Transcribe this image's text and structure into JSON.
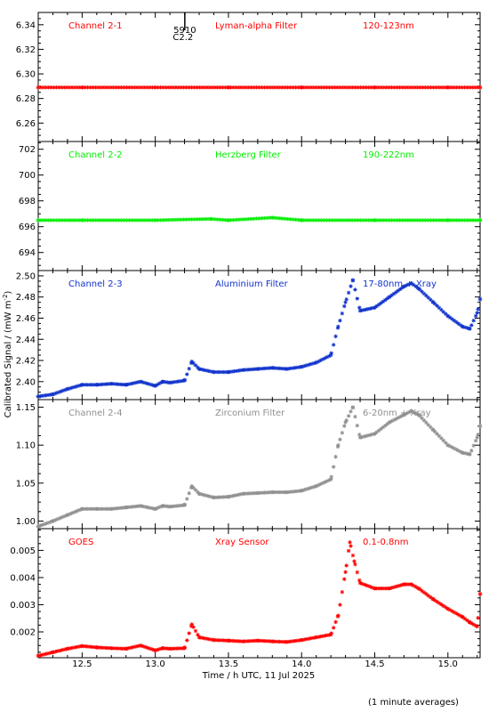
{
  "figure": {
    "ylabel": "Calibrated Signal / (mW m",
    "ylabel_sup": "-2",
    "ylabel_end": ")",
    "xlabel": "Time / h UTC, 11 Jul 2025",
    "footnote": "(1 minute averages)",
    "marker": {
      "label_top": "5910",
      "label_bottom": "C2.2",
      "x": 13.22
    }
  },
  "chart_data": [
    {
      "type": "scatter",
      "channel": "Channel 2-1",
      "filter": "Lyman-alpha Filter",
      "band": "120-123nm",
      "color": "#ff0000",
      "xlim": [
        12.2,
        15.22
      ],
      "ylim": [
        6.245,
        6.35
      ],
      "yticks": [
        "6.26",
        "6.28",
        "6.30",
        "6.32",
        "6.34"
      ],
      "x": [
        12.2,
        12.5,
        13.0,
        13.5,
        14.0,
        14.5,
        15.0,
        15.22
      ],
      "y": [
        6.289,
        6.289,
        6.289,
        6.289,
        6.289,
        6.289,
        6.289,
        6.289
      ]
    },
    {
      "type": "scatter",
      "channel": "Channel 2-2",
      "filter": "Herzberg Filter",
      "band": "190-222nm",
      "color": "#00ee00",
      "xlim": [
        12.2,
        15.22
      ],
      "ylim": [
        692.6,
        702.6
      ],
      "yticks": [
        "694",
        "696",
        "698",
        "700",
        "702"
      ],
      "x": [
        12.2,
        12.5,
        13.0,
        13.38,
        13.5,
        13.8,
        14.0,
        14.5,
        15.0,
        15.22
      ],
      "y": [
        696.5,
        696.5,
        696.5,
        696.6,
        696.5,
        696.7,
        696.5,
        696.5,
        696.5,
        696.5
      ]
    },
    {
      "type": "scatter",
      "channel": "Channel 2-3",
      "filter": "Aluminium Filter",
      "band": "17-80nm + Xray",
      "color": "#1133cc",
      "xlim": [
        12.2,
        15.22
      ],
      "ylim": [
        2.383,
        2.505
      ],
      "yticks": [
        "2.40",
        "2.42",
        "2.44",
        "2.46",
        "2.48",
        "2.50"
      ],
      "x": [
        12.2,
        12.3,
        12.4,
        12.5,
        12.6,
        12.7,
        12.8,
        12.9,
        13.0,
        13.05,
        13.1,
        13.2,
        13.25,
        13.3,
        13.4,
        13.5,
        13.6,
        13.7,
        13.8,
        13.9,
        14.0,
        14.1,
        14.2,
        14.25,
        14.3,
        14.35,
        14.4,
        14.5,
        14.6,
        14.7,
        14.75,
        14.8,
        14.9,
        15.0,
        15.1,
        15.15,
        15.2,
        15.22
      ],
      "y": [
        2.386,
        2.388,
        2.393,
        2.397,
        2.397,
        2.398,
        2.397,
        2.4,
        2.396,
        2.4,
        2.399,
        2.401,
        2.419,
        2.412,
        2.409,
        2.409,
        2.411,
        2.412,
        2.413,
        2.412,
        2.414,
        2.418,
        2.425,
        2.452,
        2.475,
        2.496,
        2.467,
        2.47,
        2.48,
        2.49,
        2.493,
        2.488,
        2.475,
        2.462,
        2.452,
        2.45,
        2.465,
        2.478
      ]
    },
    {
      "type": "scatter",
      "channel": "Channel 2-4",
      "filter": "Zirconium Filter",
      "band": "6-20nm + Xray",
      "color": "#909090",
      "xlim": [
        12.2,
        15.22
      ],
      "ylim": [
        0.99,
        1.16
      ],
      "yticks": [
        "1.00",
        "1.05",
        "1.10",
        "1.15"
      ],
      "x": [
        12.2,
        12.3,
        12.4,
        12.5,
        12.6,
        12.7,
        12.8,
        12.9,
        13.0,
        13.05,
        13.1,
        13.2,
        13.25,
        13.3,
        13.4,
        13.5,
        13.6,
        13.7,
        13.8,
        13.9,
        14.0,
        14.1,
        14.2,
        14.25,
        14.3,
        14.35,
        14.4,
        14.5,
        14.6,
        14.7,
        14.75,
        14.8,
        14.9,
        15.0,
        15.1,
        15.15,
        15.2,
        15.22
      ],
      "y": [
        0.993,
        1.0,
        1.008,
        1.016,
        1.016,
        1.016,
        1.018,
        1.02,
        1.016,
        1.02,
        1.019,
        1.021,
        1.046,
        1.036,
        1.031,
        1.032,
        1.036,
        1.037,
        1.038,
        1.038,
        1.04,
        1.046,
        1.055,
        1.1,
        1.13,
        1.15,
        1.11,
        1.115,
        1.13,
        1.14,
        1.145,
        1.14,
        1.12,
        1.1,
        1.09,
        1.088,
        1.11,
        1.125
      ]
    },
    {
      "type": "scatter",
      "channel": "GOES",
      "filter": "Xray Sensor",
      "band": "0.1-0.8nm",
      "color": "#ff0000",
      "xlim": [
        12.2,
        15.22
      ],
      "ylim": [
        0.00105,
        0.0058
      ],
      "yticks": [
        "0.002",
        "0.003",
        "0.004",
        "0.005"
      ],
      "x": [
        12.2,
        12.3,
        12.4,
        12.5,
        12.6,
        12.7,
        12.8,
        12.9,
        13.0,
        13.05,
        13.1,
        13.2,
        13.25,
        13.3,
        13.4,
        13.5,
        13.6,
        13.7,
        13.8,
        13.9,
        14.0,
        14.1,
        14.2,
        14.25,
        14.3,
        14.33,
        14.36,
        14.4,
        14.5,
        14.6,
        14.7,
        14.75,
        14.8,
        14.9,
        15.0,
        15.1,
        15.15,
        15.2,
        15.22
      ],
      "y": [
        0.00112,
        0.00125,
        0.00138,
        0.00148,
        0.00143,
        0.0014,
        0.00138,
        0.0015,
        0.00132,
        0.0014,
        0.00138,
        0.0014,
        0.00228,
        0.0018,
        0.0017,
        0.00168,
        0.00165,
        0.00168,
        0.00165,
        0.00163,
        0.0017,
        0.0018,
        0.0019,
        0.0026,
        0.0042,
        0.0053,
        0.0046,
        0.0038,
        0.0036,
        0.0036,
        0.00375,
        0.00375,
        0.0036,
        0.0032,
        0.00285,
        0.00255,
        0.00235,
        0.0022,
        0.0034
      ]
    }
  ],
  "xaxis": {
    "xlim": [
      12.2,
      15.22
    ],
    "ticks": [
      "12.5",
      "13.0",
      "13.5",
      "14.0",
      "14.5",
      "15.0"
    ],
    "minor_step": 0.1
  }
}
